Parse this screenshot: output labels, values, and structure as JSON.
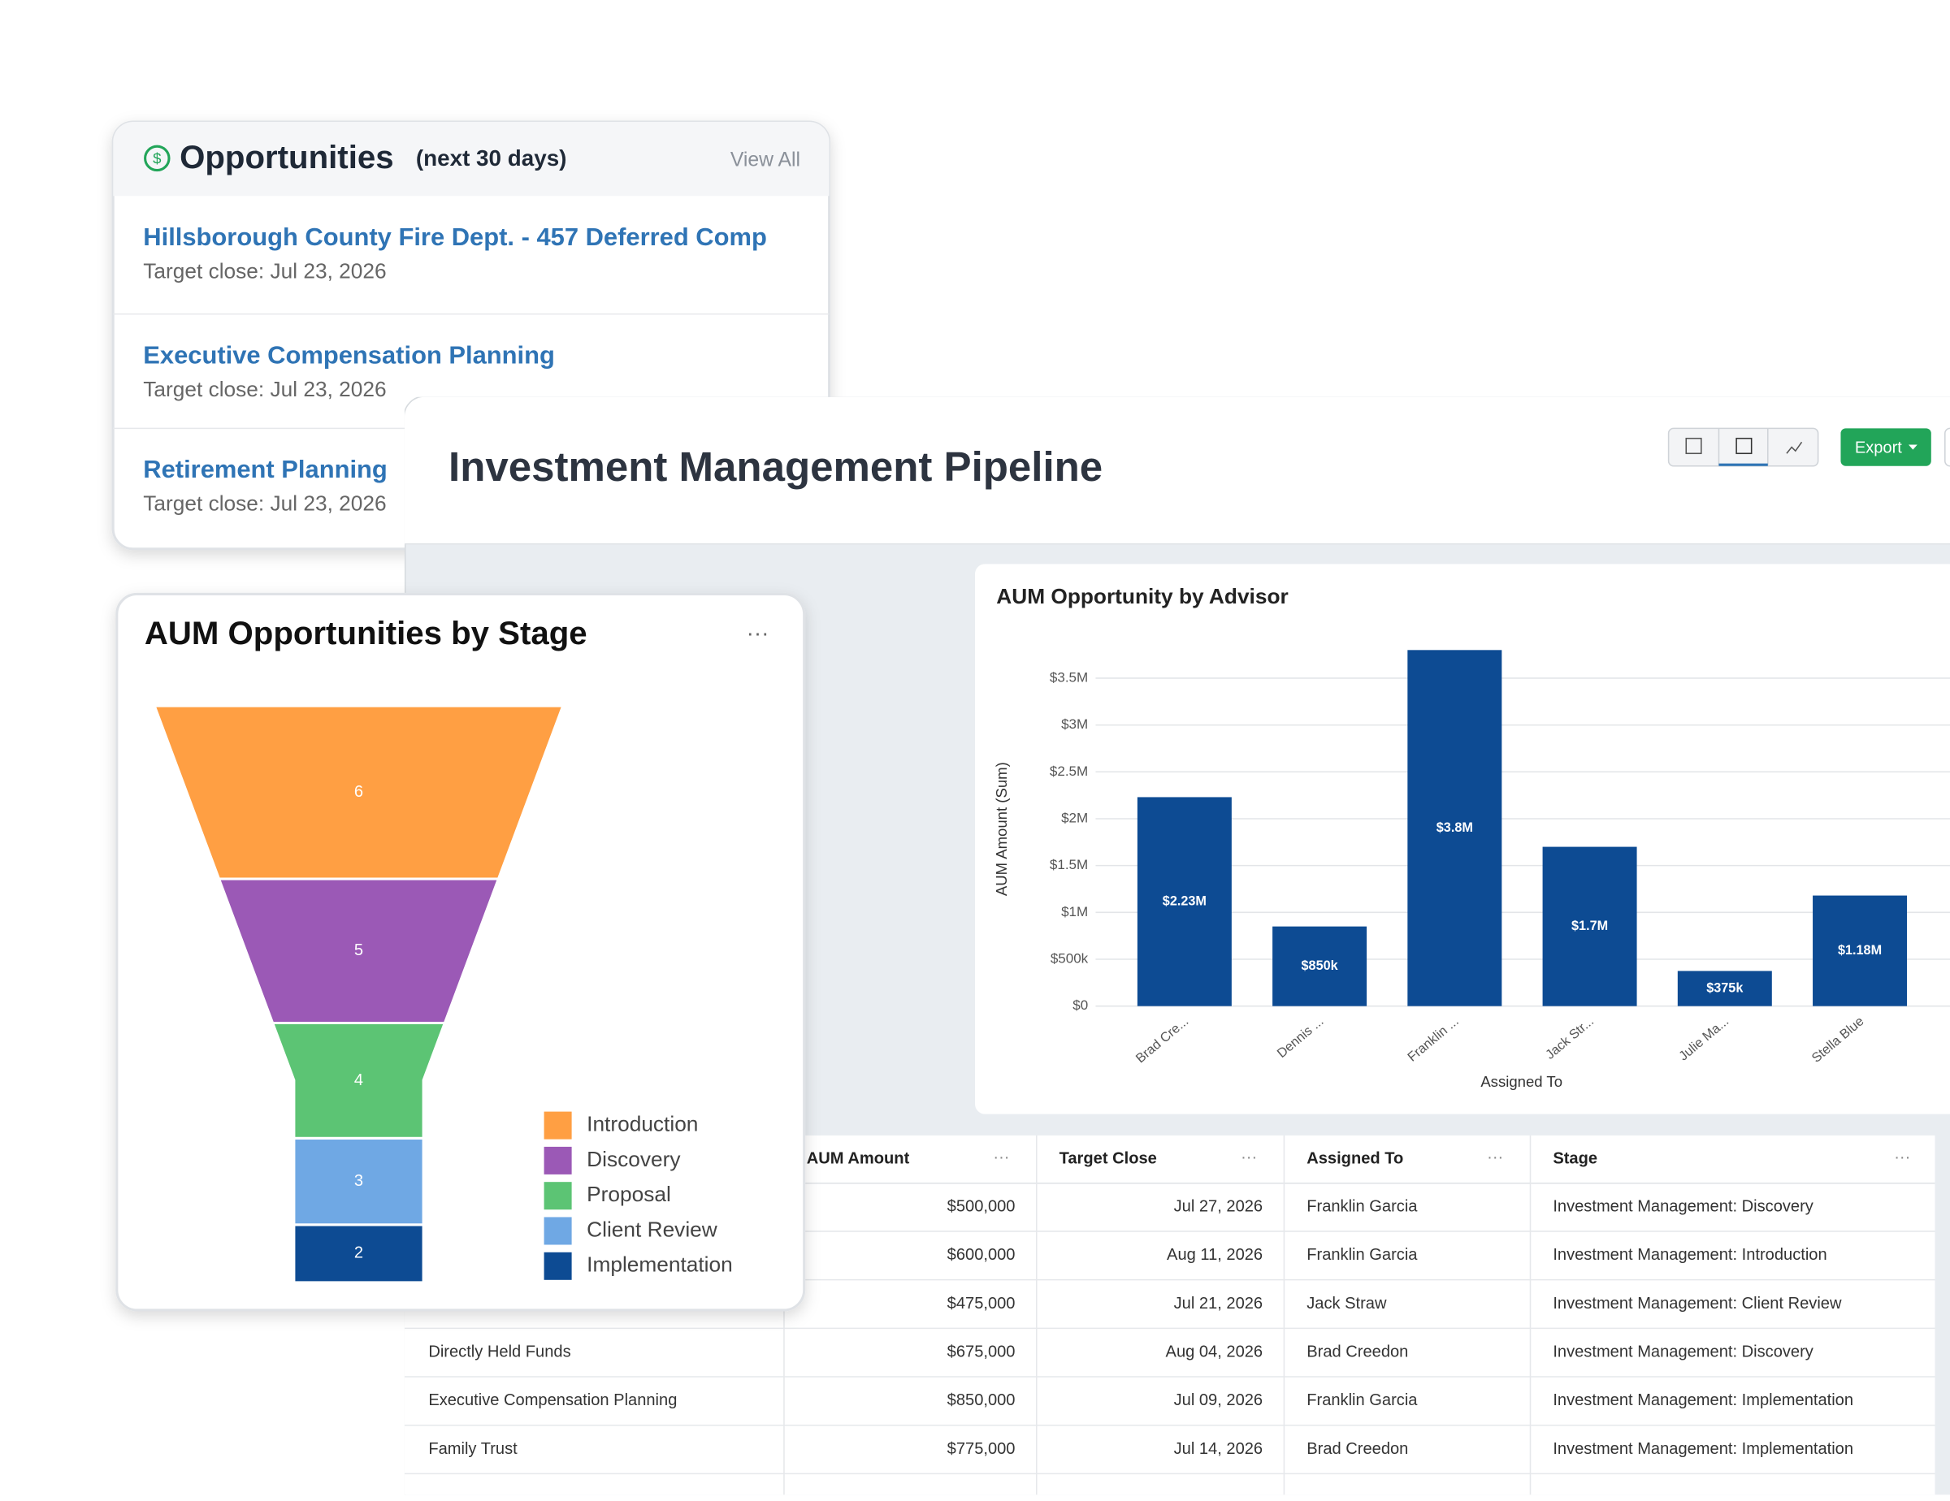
{
  "opportunities": {
    "title": "Opportunities",
    "subtitle": "(next 30 days)",
    "link": "View All",
    "items": [
      {
        "title": "Hillsborough County Fire Dept. - 457 Deferred Comp",
        "close": "Target close: Jul 23, 2026"
      },
      {
        "title": "Executive Compensation Planning",
        "close": "Target close: Jul 23, 2026"
      },
      {
        "title": "Retirement Planning",
        "close": "Target close: Jul 23, 2026"
      }
    ]
  },
  "pipeline": {
    "title": "Investment Management Pipeline",
    "export": "Export"
  },
  "chart_data": [
    {
      "type": "funnel",
      "title": "AUM Opportunities by Stage",
      "categories": [
        "Introduction",
        "Discovery",
        "Proposal",
        "Client Review",
        "Implementation"
      ],
      "values": [
        6,
        5,
        4,
        3,
        2
      ],
      "colors": [
        "#ff9f43",
        "#9b59b6",
        "#5cc474",
        "#6fa8e4",
        "#0d4b93"
      ],
      "legend": "right"
    },
    {
      "type": "bar",
      "title": "AUM Opportunity by Advisor",
      "x_label": "Assigned To",
      "y_label": "AUM Amount (Sum)",
      "categories": [
        "Brad Cre...",
        "Dennis ...",
        "Franklin ...",
        "Jack Str...",
        "Julie Ma...",
        "Stella Blue"
      ],
      "values": [
        2230000,
        850000,
        3800000,
        1700000,
        375000,
        1180000
      ],
      "value_labels": [
        "$2.23M",
        "$850k",
        "$3.8M",
        "$1.7M",
        "$375k",
        "$1.18M"
      ],
      "color": "#0d4b93",
      "ylim": [
        0,
        3800000
      ],
      "yticks": [
        {
          "value": 0,
          "label": "$0"
        },
        {
          "value": 500000,
          "label": "$500k"
        },
        {
          "value": 1000000,
          "label": "$1M"
        },
        {
          "value": 1500000,
          "label": "$1.5M"
        },
        {
          "value": 2000000,
          "label": "$2M"
        },
        {
          "value": 2500000,
          "label": "$2.5M"
        },
        {
          "value": 3000000,
          "label": "$3M"
        },
        {
          "value": 3500000,
          "label": "$3.5M"
        }
      ],
      "grid": true
    }
  ],
  "table": {
    "columns": [
      "AUM Amount",
      "Target Close",
      "Assigned To",
      "Stage"
    ],
    "rows": [
      {
        "cells": [
          "$500,000",
          "Jul 27, 2026",
          "Franklin Garcia",
          "Investment Management: Discovery"
        ]
      },
      {
        "cells": [
          "$600,000",
          "Aug 11, 2026",
          "Franklin Garcia",
          "Investment Management: Introduction"
        ]
      },
      {
        "cells": [
          "$475,000",
          "Jul 21, 2026",
          "Jack Straw",
          "Investment Management: Client Review"
        ]
      },
      {
        "name": "Directly Held Funds",
        "cells": [
          "$675,000",
          "Aug 04, 2026",
          "Brad Creedon",
          "Investment Management: Discovery"
        ]
      },
      {
        "name": "Executive Compensation Planning",
        "cells": [
          "$850,000",
          "Jul 09, 2026",
          "Franklin Garcia",
          "Investment Management: Implementation"
        ]
      },
      {
        "name": "Family Trust",
        "cells": [
          "$775,000",
          "Jul 14, 2026",
          "Brad Creedon",
          "Investment Management: Implementation"
        ]
      }
    ]
  }
}
